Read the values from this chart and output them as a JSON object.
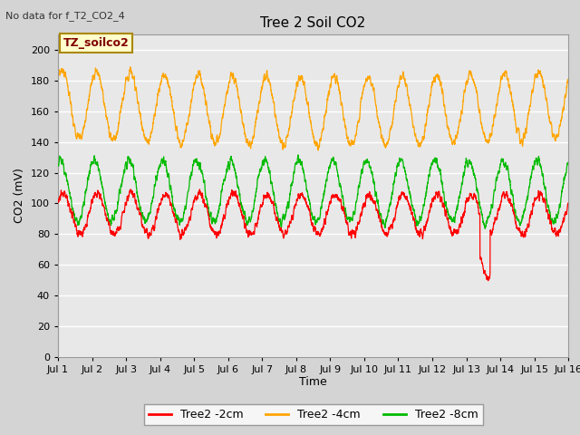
{
  "title": "Tree 2 Soil CO2",
  "subtitle": "No data for f_T2_CO2_4",
  "ylabel": "CO2 (mV)",
  "xlabel": "Time",
  "annotation": "TZ_soilco2",
  "ylim": [
    0,
    210
  ],
  "yticks": [
    0,
    20,
    40,
    60,
    80,
    100,
    120,
    140,
    160,
    180,
    200
  ],
  "xtick_labels": [
    "Jul 1",
    "Jul 2",
    "Jul 3",
    "Jul 4",
    "Jul 5",
    "Jul 6",
    "Jul 7",
    "Jul 8",
    "Jul 9",
    "Jul 10",
    "Jul 11",
    "Jul 12",
    "Jul 13",
    "Jul 14",
    "Jul 15",
    "Jul 16"
  ],
  "legend_entries": [
    "Tree2 -2cm",
    "Tree2 -4cm",
    "Tree2 -8cm"
  ],
  "legend_colors": [
    "#ff0000",
    "#ffa500",
    "#00bb00"
  ],
  "line_colors": [
    "#ff0000",
    "#ffa500",
    "#00bb00"
  ],
  "fig_bg": "#d4d4d4",
  "plot_bg": "#e8e8e8",
  "grid_color": "#ffffff",
  "annotation_fg": "#800000",
  "annotation_bg": "#ffffcc",
  "annotation_border": "#aa8800"
}
